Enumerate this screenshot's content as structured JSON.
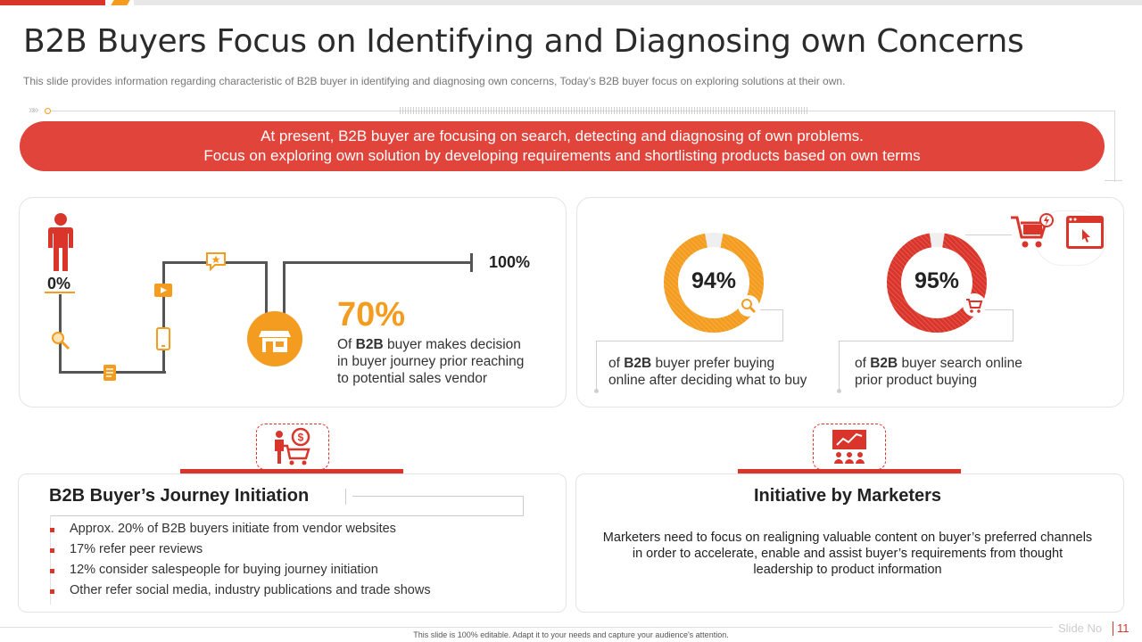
{
  "title": "B2B Buyers Focus on Identifying and Diagnosing own Concerns",
  "subtitle": "This slide provides information regarding characteristic of B2B buyer in identifying and diagnosing own concerns, Today’s B2B buyer focus on exploring solutions at their own.",
  "banner": {
    "line1": "At present, B2B buyer are focusing on search, detecting and diagnosing of own problems.",
    "line2": "Focus on exploring own solution by developing requirements and shortlisting products based on own terms"
  },
  "journey": {
    "start_label": "0%",
    "end_label": "100%",
    "highlight": "70%",
    "desc_prefix": "Of ",
    "desc_bold": "B2B",
    "desc_rest_line1": " buyer makes decision",
    "desc_line2": "in buyer journey  prior reaching",
    "desc_line3": "to potential sales vendor"
  },
  "stats": [
    {
      "value": "94%",
      "fraction": 0.94,
      "color": "#f39c1f",
      "prefix": "of ",
      "bold": "B2B",
      "rest1": " buyer prefer buying",
      "line2": "online after deciding what to buy"
    },
    {
      "value": "95%",
      "fraction": 0.95,
      "color": "#d9352b",
      "prefix": "of ",
      "bold": "B2B",
      "rest1": " buyer search online",
      "line2": "prior product buying"
    }
  ],
  "journey_section": {
    "title": "B2B Buyer’s Journey Initiation",
    "bullets": [
      "Approx. 20% of B2B buyers initiate from vendor websites",
      "17% refer peer reviews",
      "12% consider salespeople for buying journey initiation",
      "Other refer social media, industry publications and trade shows"
    ]
  },
  "marketers_section": {
    "title": "Initiative by Marketers",
    "line1": "Marketers need to focus on realigning valuable content on buyer’s preferred channels",
    "line2": "in order to accelerate, enable and assist buyer’s  requirements from thought",
    "line3": "leadership to product information"
  },
  "footer": {
    "note": "This slide is 100% editable. Adapt it to your needs and capture your audience's attention.",
    "slide_label": "Slide No",
    "slide_number": "11"
  }
}
